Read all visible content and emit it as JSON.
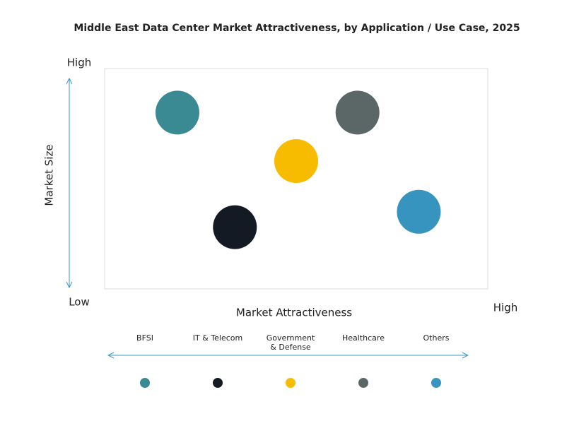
{
  "chart_data": {
    "type": "scatter",
    "title": "Middle East Data Center Market Attractiveness,  by Application / Use Case, 2025",
    "x_label": "Market Attractiveness",
    "y_label": "Market Size",
    "xlim": [
      0,
      100
    ],
    "ylim": [
      0,
      100
    ],
    "xticks": [
      {
        "value": 100,
        "label": "High"
      }
    ],
    "yticks": [
      {
        "value": 0,
        "label": "Low"
      },
      {
        "value": 100,
        "label": "High"
      }
    ],
    "series": [
      {
        "name": "BFSI",
        "color": "#3a8a93",
        "x": [
          19
        ],
        "values": [
          80
        ]
      },
      {
        "name": "IT & Telecom",
        "color": "#141a24",
        "x": [
          34
        ],
        "values": [
          28
        ]
      },
      {
        "name": "Government & Defense",
        "color": "#f7bb00",
        "x": [
          50
        ],
        "values": [
          58
        ]
      },
      {
        "name": "Healthcare",
        "color": "#5b6667",
        "x": [
          66
        ],
        "values": [
          80
        ]
      },
      {
        "name": "Others",
        "color": "#3794be",
        "x": [
          82
        ],
        "values": [
          35
        ]
      }
    ]
  }
}
